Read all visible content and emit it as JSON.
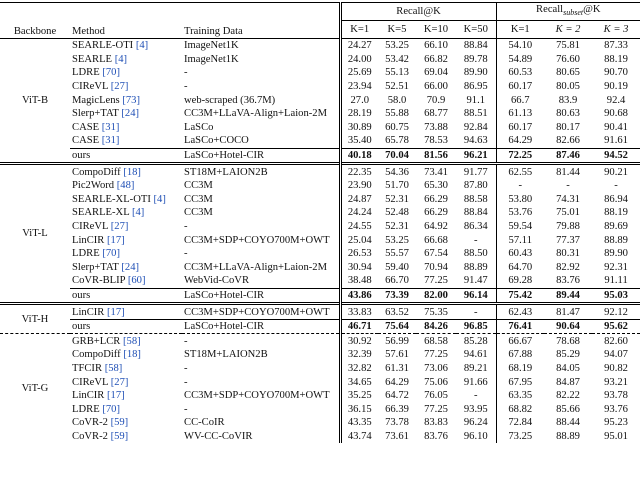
{
  "header": {
    "backbone": "Backbone",
    "method": "Method",
    "training_data": "Training Data",
    "recall": "Recall@K",
    "recall_subset": {
      "main": "Recall",
      "sub": "subset",
      "suffix": "@K"
    },
    "recall_k": [
      "K=1",
      "K=5",
      "K=10",
      "K=50"
    ],
    "recall_subset_k": [
      "K=1",
      "K = 2",
      "K = 3"
    ]
  },
  "table": {
    "groups": [
      {
        "backbone": "ViT-B",
        "rows": [
          {
            "method": "SEARLE-OTI",
            "ref": "[4]",
            "training_data": "ImageNet1K",
            "recall": [
              "24.27",
              "53.25",
              "66.10",
              "88.84"
            ],
            "recall_subset": [
              "54.10",
              "75.81",
              "87.33"
            ]
          },
          {
            "method": "SEARLE",
            "ref": "[4]",
            "training_data": "ImageNet1K",
            "recall": [
              "24.00",
              "53.42",
              "66.82",
              "89.78"
            ],
            "recall_subset": [
              "54.89",
              "76.60",
              "88.19"
            ]
          },
          {
            "method": "LDRE",
            "ref": "[70]",
            "training_data": "-",
            "recall": [
              "25.69",
              "55.13",
              "69.04",
              "89.90"
            ],
            "recall_subset": [
              "60.53",
              "80.65",
              "90.70"
            ]
          },
          {
            "method": "CIReVL",
            "ref": "[27]",
            "training_data": "-",
            "recall": [
              "23.94",
              "52.51",
              "66.00",
              "86.95"
            ],
            "recall_subset": [
              "60.17",
              "80.05",
              "90.19"
            ]
          },
          {
            "method": "MagicLens",
            "ref": "[73]",
            "training_data": "web-scraped (36.7M)",
            "recall": [
              "27.0",
              "58.0",
              "70.9",
              "91.1"
            ],
            "recall_subset": [
              "66.7",
              "83.9",
              "92.4"
            ]
          },
          {
            "method": "Slerp+TAT",
            "ref": "[24]",
            "training_data": "CC3M+LLaVA-Align+Laion-2M",
            "recall": [
              "28.19",
              "55.88",
              "68.77",
              "88.51"
            ],
            "recall_subset": [
              "61.13",
              "80.63",
              "90.68"
            ]
          },
          {
            "method": "CASE",
            "ref": "[31]",
            "training_data": "LaSCo",
            "recall": [
              "30.89",
              "60.75",
              "73.88",
              "92.84"
            ],
            "recall_subset": [
              "60.17",
              "80.17",
              "90.41"
            ]
          },
          {
            "method": "CASE",
            "ref": "[31]",
            "training_data": "LaSCo+COCO",
            "recall": [
              "35.40",
              "65.78",
              "78.53",
              "94.63"
            ],
            "recall_subset": [
              "64.29",
              "82.66",
              "91.61"
            ]
          },
          {
            "method": "ours",
            "training_data": "LaSCo+Hotel-CIR",
            "recall": [
              "40.18",
              "70.04",
              "81.56",
              "96.21"
            ],
            "recall_subset": [
              "72.25",
              "87.46",
              "94.52"
            ],
            "bold": true
          }
        ]
      },
      {
        "backbone": "ViT-L",
        "rows": [
          {
            "method": "CompoDiff",
            "ref": "[18]",
            "training_data": "ST18M+LAION2B",
            "recall": [
              "22.35",
              "54.36",
              "73.41",
              "91.77"
            ],
            "recall_subset": [
              "62.55",
              "81.44",
              "90.21"
            ]
          },
          {
            "method": "Pic2Word",
            "ref": "[48]",
            "training_data": "CC3M",
            "recall": [
              "23.90",
              "51.70",
              "65.30",
              "87.80"
            ],
            "recall_subset": [
              "-",
              "-",
              "-"
            ]
          },
          {
            "method": "SEARLE-XL-OTI",
            "ref": "[4]",
            "training_data": "CC3M",
            "recall": [
              "24.87",
              "52.31",
              "66.29",
              "88.58"
            ],
            "recall_subset": [
              "53.80",
              "74.31",
              "86.94"
            ]
          },
          {
            "method": "SEARLE-XL",
            "ref": "[4]",
            "training_data": "CC3M",
            "recall": [
              "24.24",
              "52.48",
              "66.29",
              "88.84"
            ],
            "recall_subset": [
              "53.76",
              "75.01",
              "88.19"
            ]
          },
          {
            "method": "CIReVL",
            "ref": "[27]",
            "training_data": "-",
            "recall": [
              "24.55",
              "52.31",
              "64.92",
              "86.34"
            ],
            "recall_subset": [
              "59.54",
              "79.88",
              "89.69"
            ]
          },
          {
            "method": "LinCIR",
            "ref": "[17]",
            "training_data": "CC3M+SDP+COYO700M+OWT",
            "recall": [
              "25.04",
              "53.25",
              "66.68",
              "-"
            ],
            "recall_subset": [
              "57.11",
              "77.37",
              "88.89"
            ]
          },
          {
            "method": "LDRE",
            "ref": "[70]",
            "training_data": "-",
            "recall": [
              "26.53",
              "55.57",
              "67.54",
              "88.50"
            ],
            "recall_subset": [
              "60.43",
              "80.31",
              "89.90"
            ]
          },
          {
            "method": "Slerp+TAT",
            "ref": "[24]",
            "training_data": "CC3M+LLaVA-Align+Laion-2M",
            "recall": [
              "30.94",
              "59.40",
              "70.94",
              "88.89"
            ],
            "recall_subset": [
              "64.70",
              "82.92",
              "92.31"
            ]
          },
          {
            "method": "CoVR-BLIP",
            "ref": "[60]",
            "training_data": "WebVid-CoVR",
            "recall": [
              "38.48",
              "66.70",
              "77.25",
              "91.47"
            ],
            "recall_subset": [
              "69.28",
              "83.76",
              "91.11"
            ]
          },
          {
            "method": "ours",
            "training_data": "LaSCo+Hotel-CIR",
            "recall": [
              "43.86",
              "73.39",
              "82.00",
              "96.14"
            ],
            "recall_subset": [
              "75.42",
              "89.44",
              "95.03"
            ],
            "bold": true
          }
        ]
      },
      {
        "backbone": "ViT-H",
        "rows": [
          {
            "method": "LinCIR",
            "ref": "[17]",
            "training_data": "CC3M+SDP+COYO700M+OWT",
            "recall": [
              "33.83",
              "63.52",
              "75.35",
              "-"
            ],
            "recall_subset": [
              "62.43",
              "81.47",
              "92.12"
            ]
          },
          {
            "method": "ours",
            "training_data": "LaSCo+Hotel-CIR",
            "recall": [
              "46.71",
              "75.64",
              "84.26",
              "96.85"
            ],
            "recall_subset": [
              "76.41",
              "90.64",
              "95.62"
            ],
            "bold": true
          }
        ]
      },
      {
        "backbone": "ViT-G",
        "rows": [
          {
            "method": "GRB+LCR",
            "ref": "[58]",
            "training_data": "-",
            "recall": [
              "30.92",
              "56.99",
              "68.58",
              "85.28"
            ],
            "recall_subset": [
              "66.67",
              "78.68",
              "82.60"
            ]
          },
          {
            "method": "CompoDiff",
            "ref": "[18]",
            "training_data": "ST18M+LAION2B",
            "recall": [
              "32.39",
              "57.61",
              "77.25",
              "94.61"
            ],
            "recall_subset": [
              "67.88",
              "85.29",
              "94.07"
            ]
          },
          {
            "method": "TFCIR",
            "ref": "[58]",
            "training_data": "-",
            "recall": [
              "32.82",
              "61.31",
              "73.06",
              "89.21"
            ],
            "recall_subset": [
              "68.19",
              "84.05",
              "90.82"
            ]
          },
          {
            "method": "CIReVL",
            "ref": "[27]",
            "training_data": "-",
            "recall": [
              "34.65",
              "64.29",
              "75.06",
              "91.66"
            ],
            "recall_subset": [
              "67.95",
              "84.87",
              "93.21"
            ]
          },
          {
            "method": "LinCIR",
            "ref": "[17]",
            "training_data": "CC3M+SDP+COYO700M+OWT",
            "recall": [
              "35.25",
              "64.72",
              "76.05",
              "-"
            ],
            "recall_subset": [
              "63.35",
              "82.22",
              "93.78"
            ]
          },
          {
            "method": "LDRE",
            "ref": "[70]",
            "training_data": "-",
            "recall": [
              "36.15",
              "66.39",
              "77.25",
              "93.95"
            ],
            "recall_subset": [
              "68.82",
              "85.66",
              "93.76"
            ]
          },
          {
            "method": "CoVR-2",
            "ref": "[59]",
            "training_data": "CC-CoIR",
            "recall": [
              "43.35",
              "73.78",
              "83.83",
              "96.24"
            ],
            "recall_subset": [
              "72.84",
              "88.44",
              "95.23"
            ]
          },
          {
            "method": "CoVR-2",
            "ref": "[59]",
            "training_data": "WV-CC-CoVIR",
            "recall": [
              "43.74",
              "73.61",
              "83.76",
              "96.10"
            ],
            "recall_subset": [
              "73.25",
              "88.89",
              "95.01"
            ]
          }
        ]
      }
    ]
  }
}
